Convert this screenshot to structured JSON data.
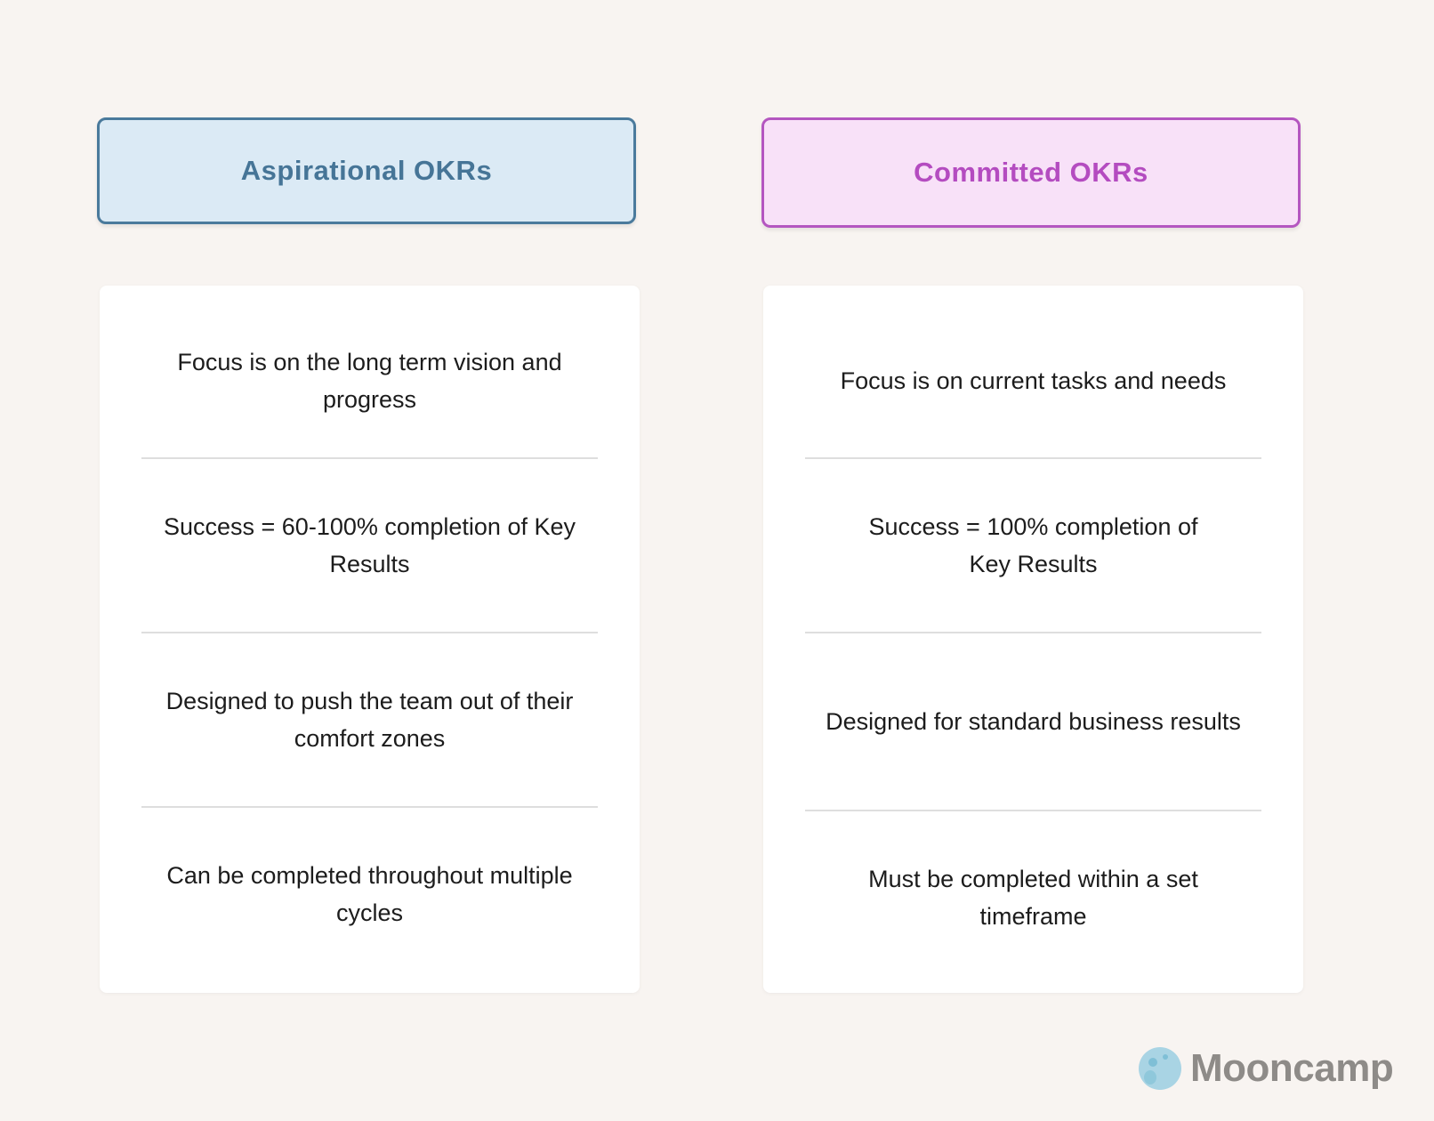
{
  "columns": [
    {
      "title": "Aspirational OKRs",
      "accent": "#467597",
      "items": [
        "Focus is on the long term vision and progress",
        "Success = 60-100% completion of Key Results",
        "Designed to push the team out of their comfort zones",
        "Can be completed throughout multiple cycles"
      ]
    },
    {
      "title": "Committed OKRs",
      "accent": "#b44cc0",
      "items": [
        "Focus is on current tasks and needs",
        "Success = 100% completion of Key Results",
        "Designed for standard business results",
        "Must be completed within a set timeframe"
      ]
    }
  ],
  "brand": {
    "name": "Mooncamp",
    "icon": "moon-icon"
  }
}
